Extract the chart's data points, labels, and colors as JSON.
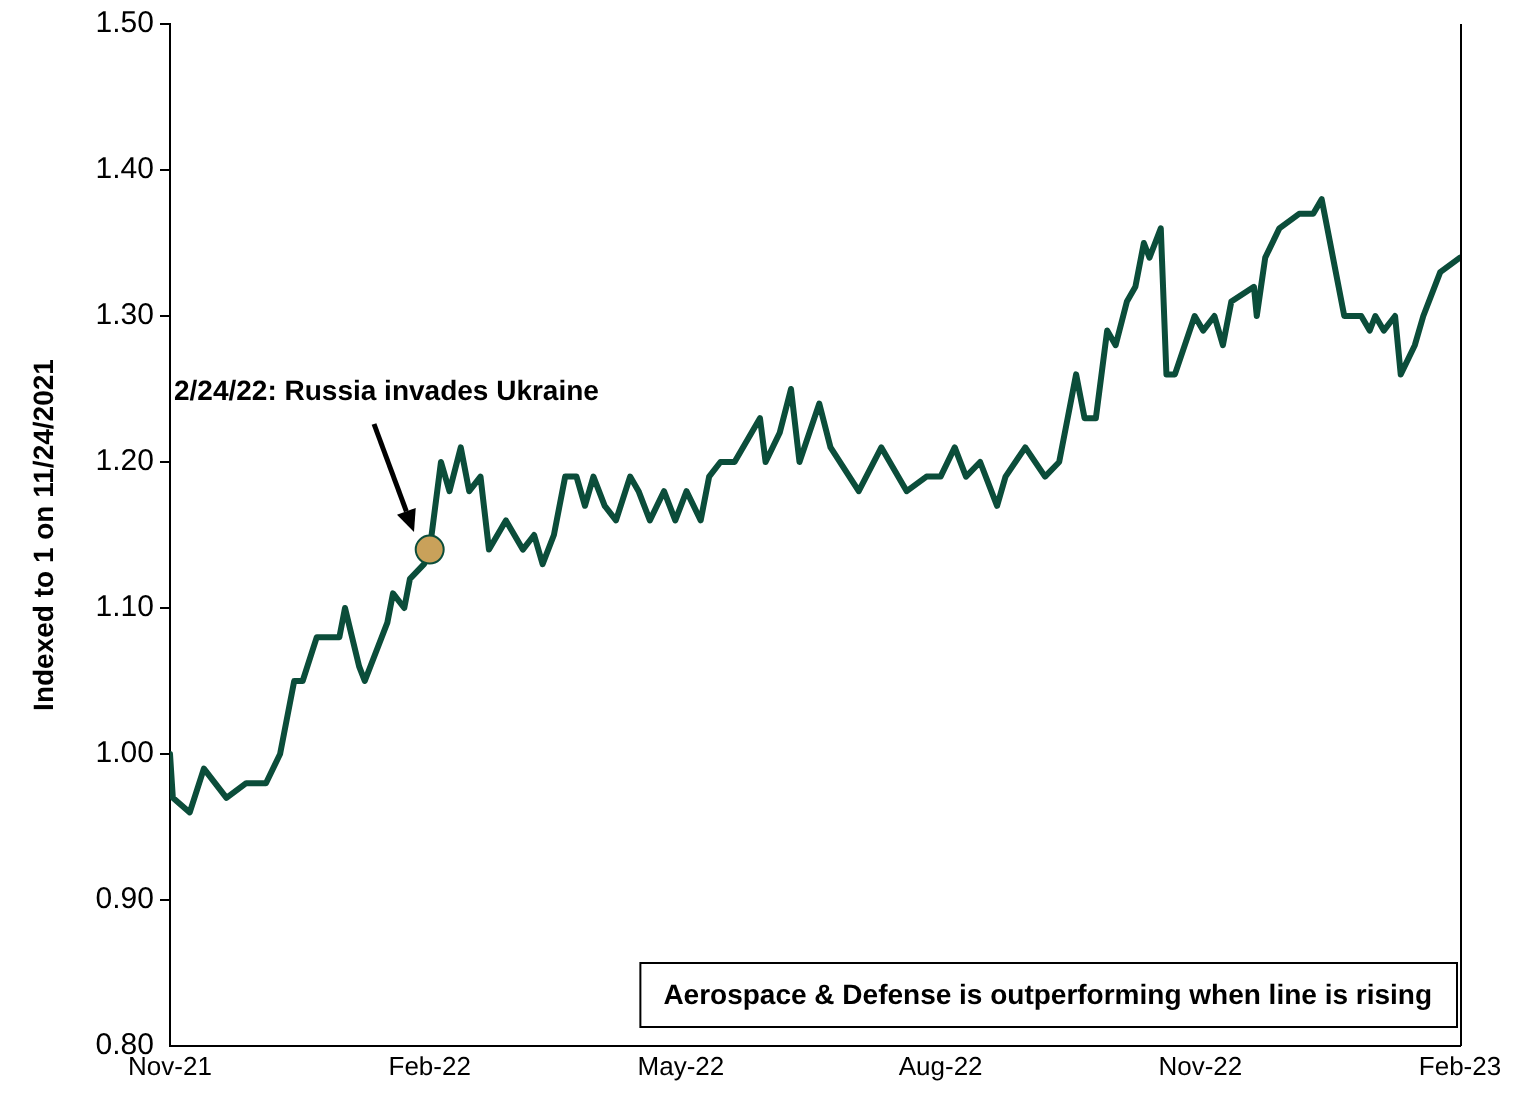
{
  "chart_data": {
    "type": "line",
    "ylabel": "Indexed to 1 on 11/24/2021",
    "x": [
      "2021-11-24",
      "2021-11-25",
      "2021-12-01",
      "2021-12-06",
      "2021-12-14",
      "2021-12-21",
      "2021-12-28",
      "2022-01-02",
      "2022-01-07",
      "2022-01-10",
      "2022-01-15",
      "2022-01-20",
      "2022-01-23",
      "2022-01-25",
      "2022-01-30",
      "2022-02-01",
      "2022-02-09",
      "2022-02-11",
      "2022-02-15",
      "2022-02-17",
      "2022-02-22",
      "2022-02-24",
      "2022-02-28",
      "2022-03-03",
      "2022-03-07",
      "2022-03-10",
      "2022-03-14",
      "2022-03-17",
      "2022-03-23",
      "2022-03-29",
      "2022-04-02",
      "2022-04-05",
      "2022-04-09",
      "2022-04-13",
      "2022-04-17",
      "2022-04-20",
      "2022-04-23",
      "2022-04-27",
      "2022-05-01",
      "2022-05-06",
      "2022-05-09",
      "2022-05-13",
      "2022-05-18",
      "2022-05-22",
      "2022-05-26",
      "2022-05-31",
      "2022-06-03",
      "2022-06-07",
      "2022-06-12",
      "2022-06-21",
      "2022-06-23",
      "2022-06-28",
      "2022-07-02",
      "2022-07-05",
      "2022-07-12",
      "2022-07-16",
      "2022-07-26",
      "2022-08-03",
      "2022-08-12",
      "2022-08-19",
      "2022-08-24",
      "2022-08-29",
      "2022-09-02",
      "2022-09-07",
      "2022-09-13",
      "2022-09-16",
      "2022-09-23",
      "2022-09-30",
      "2022-10-05",
      "2022-10-08",
      "2022-10-11",
      "2022-10-14",
      "2022-10-18",
      "2022-10-22",
      "2022-10-25",
      "2022-10-29",
      "2022-11-01",
      "2022-11-04",
      "2022-11-06",
      "2022-11-10",
      "2022-11-12",
      "2022-11-15",
      "2022-11-22",
      "2022-11-25",
      "2022-11-29",
      "2022-12-02",
      "2022-12-05",
      "2022-12-13",
      "2022-12-14",
      "2022-12-17",
      "2022-12-22",
      "2022-12-29",
      "2023-01-03",
      "2023-01-06",
      "2023-01-07",
      "2023-01-12",
      "2023-01-14",
      "2023-01-20",
      "2023-01-23",
      "2023-01-25",
      "2023-01-28",
      "2023-02-01",
      "2023-02-03",
      "2023-02-08",
      "2023-02-11",
      "2023-02-17",
      "2023-02-24"
    ],
    "series": [
      {
        "color": "#0b4d3a",
        "values": [
          1.0,
          0.97,
          0.96,
          0.99,
          0.97,
          0.98,
          0.98,
          1.0,
          1.05,
          1.05,
          1.08,
          1.08,
          1.08,
          1.1,
          1.06,
          1.05,
          1.09,
          1.11,
          1.1,
          1.12,
          1.13,
          1.14,
          1.2,
          1.18,
          1.21,
          1.18,
          1.19,
          1.14,
          1.16,
          1.14,
          1.15,
          1.13,
          1.15,
          1.19,
          1.19,
          1.17,
          1.19,
          1.17,
          1.16,
          1.19,
          1.18,
          1.16,
          1.18,
          1.16,
          1.18,
          1.16,
          1.19,
          1.2,
          1.2,
          1.23,
          1.2,
          1.22,
          1.25,
          1.2,
          1.24,
          1.21,
          1.18,
          1.21,
          1.18,
          1.19,
          1.19,
          1.21,
          1.19,
          1.2,
          1.17,
          1.19,
          1.21,
          1.19,
          1.2,
          1.23,
          1.26,
          1.23,
          1.23,
          1.29,
          1.28,
          1.31,
          1.32,
          1.35,
          1.34,
          1.36,
          1.26,
          1.26,
          1.3,
          1.29,
          1.3,
          1.28,
          1.31,
          1.32,
          1.3,
          1.34,
          1.36,
          1.37,
          1.37,
          1.38,
          1.37,
          1.32,
          1.3,
          1.3,
          1.29,
          1.3,
          1.29,
          1.3,
          1.26,
          1.28,
          1.3,
          1.33,
          1.34
        ]
      },
      {
        "type": "scatter",
        "color": "#c9a15a",
        "marker": "circle",
        "x": [
          "2022-02-24"
        ],
        "values": [
          1.14
        ]
      }
    ],
    "xlim": [
      "2021-11-24",
      "2023-02-24"
    ],
    "xticks": [
      {
        "value": "2021-11-24",
        "label": "Nov-21"
      },
      {
        "value": "2022-02-24",
        "label": "Feb-22"
      },
      {
        "value": "2022-05-24",
        "label": "May-22"
      },
      {
        "value": "2022-08-24",
        "label": "Aug-22"
      },
      {
        "value": "2022-11-24",
        "label": "Nov-22"
      },
      {
        "value": "2023-02-24",
        "label": "Feb-23"
      }
    ],
    "ylim": [
      0.8,
      1.5
    ],
    "yticks": [
      {
        "value": 0.8,
        "label": "0.80"
      },
      {
        "value": 0.9,
        "label": "0.90"
      },
      {
        "value": 1.0,
        "label": "1.00"
      },
      {
        "value": 1.1,
        "label": "1.10"
      },
      {
        "value": 1.2,
        "label": "1.20"
      },
      {
        "value": 1.3,
        "label": "1.30"
      },
      {
        "value": 1.4,
        "label": "1.40"
      },
      {
        "value": 1.5,
        "label": "1.50"
      }
    ],
    "grid": false,
    "legend": false,
    "marker": "none",
    "line_style": "solid",
    "annotations": [
      "2/24/22: Russia invades Ukraine",
      "Aerospace & Defense is outperforming when line is rising"
    ]
  }
}
